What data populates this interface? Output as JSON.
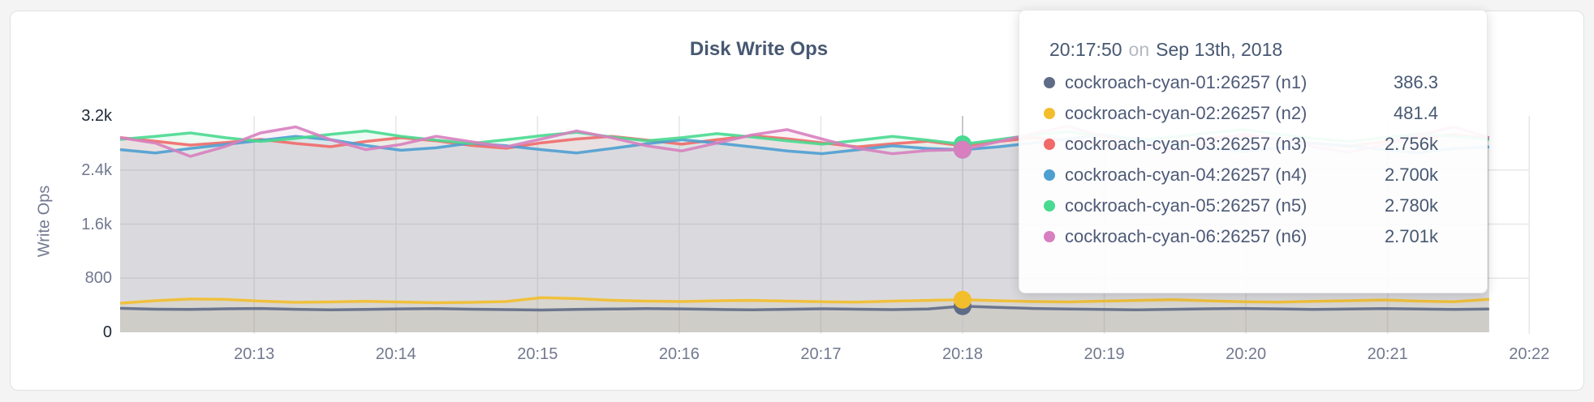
{
  "colors": {
    "page_background": "#f4f4f5",
    "card_background": "#ffffff",
    "title_text": "#475872",
    "tick_text": "#71798F",
    "tick_text_strong": "#1E2836",
    "grid_line": "#E7E7E7",
    "hover_line": "#C6C8CC"
  },
  "chart_data": {
    "type": "line",
    "title": "Disk Write Ops",
    "ylabel": "Write Ops",
    "xlabel": "",
    "ylim": [
      0,
      3200
    ],
    "grid": true,
    "legend_position": "tooltip",
    "y_tick_values": [
      0,
      800,
      1600,
      2400,
      3200
    ],
    "y_tick_labels": [
      "0",
      "800",
      "1.6k",
      "2.4k",
      "3.2k"
    ],
    "x_tick_labels": [
      "20:13",
      "20:14",
      "20:15",
      "20:16",
      "20:17",
      "20:18",
      "20:19",
      "20:20",
      "20:21",
      "20:22"
    ],
    "hover": {
      "time": "20:17:50",
      "conjunction": "on",
      "date": "Sep 13th, 2018",
      "index": 24
    },
    "series": [
      {
        "name": "cockroach-cyan-01:26257 (n1)",
        "node": "n1",
        "color": "#5F6C87",
        "hover_value_label": "386.3",
        "values": [
          355,
          342,
          338,
          348,
          352,
          340,
          332,
          338,
          346,
          350,
          342,
          336,
          330,
          338,
          344,
          350,
          346,
          338,
          332,
          340,
          348,
          342,
          336,
          344,
          386.3,
          368,
          352,
          344,
          338,
          332,
          340,
          348,
          352,
          346,
          338,
          344,
          350,
          344,
          338,
          345
        ]
      },
      {
        "name": "cockroach-cyan-02:26257 (n2)",
        "node": "n2",
        "color": "#F2BE2C",
        "hover_value_label": "481.4",
        "values": [
          430,
          468,
          492,
          486,
          462,
          444,
          450,
          458,
          448,
          438,
          444,
          456,
          512,
          498,
          474,
          462,
          456,
          466,
          472,
          462,
          452,
          446,
          462,
          472,
          481.4,
          468,
          456,
          450,
          462,
          472,
          482,
          466,
          452,
          446,
          458,
          468,
          478,
          462,
          452,
          488
        ]
      },
      {
        "name": "cockroach-cyan-03:26257 (n3)",
        "node": "n3",
        "color": "#F16969",
        "hover_value_label": "2.756k",
        "values": [
          2880,
          2826,
          2768,
          2806,
          2852,
          2792,
          2744,
          2822,
          2878,
          2832,
          2764,
          2722,
          2802,
          2858,
          2898,
          2842,
          2782,
          2848,
          2908,
          2862,
          2802,
          2742,
          2788,
          2826,
          2756,
          2820,
          2878,
          2840,
          2782,
          2732,
          2800,
          2868,
          2908,
          2848,
          2792,
          2752,
          2820,
          2878,
          2928,
          2862
        ]
      },
      {
        "name": "cockroach-cyan-04:26257 (n4)",
        "node": "n4",
        "color": "#4E9FD1",
        "hover_value_label": "2.700k",
        "values": [
          2702,
          2652,
          2718,
          2778,
          2838,
          2898,
          2848,
          2762,
          2692,
          2728,
          2798,
          2758,
          2702,
          2652,
          2718,
          2788,
          2848,
          2798,
          2742,
          2682,
          2642,
          2698,
          2758,
          2718,
          2700,
          2742,
          2798,
          2858,
          2918,
          2848,
          2782,
          2722,
          2672,
          2728,
          2798,
          2758,
          2702,
          2652,
          2718,
          2742
        ]
      },
      {
        "name": "cockroach-cyan-05:26257 (n5)",
        "node": "n5",
        "color": "#49D990",
        "hover_value_label": "2.780k",
        "values": [
          2852,
          2898,
          2948,
          2878,
          2822,
          2868,
          2928,
          2978,
          2898,
          2842,
          2792,
          2848,
          2908,
          2958,
          2888,
          2832,
          2878,
          2938,
          2888,
          2832,
          2782,
          2838,
          2898,
          2842,
          2780,
          2848,
          2918,
          2968,
          2898,
          2842,
          2888,
          2948,
          2998,
          2928,
          2868,
          2822,
          2878,
          2938,
          2898,
          2852
        ]
      },
      {
        "name": "cockroach-cyan-06:26257 (n6)",
        "node": "n6",
        "color": "#D77FBF",
        "hover_value_label": "2.701k",
        "values": [
          2878,
          2798,
          2602,
          2748,
          2948,
          3038,
          2848,
          2702,
          2778,
          2898,
          2818,
          2742,
          2858,
          2978,
          2878,
          2758,
          2682,
          2798,
          2918,
          2998,
          2858,
          2722,
          2642,
          2688,
          2701,
          2818,
          2938,
          3048,
          2898,
          2758,
          2682,
          2798,
          2938,
          2858,
          2742,
          2662,
          2778,
          2918,
          3038,
          2878
        ]
      }
    ]
  }
}
